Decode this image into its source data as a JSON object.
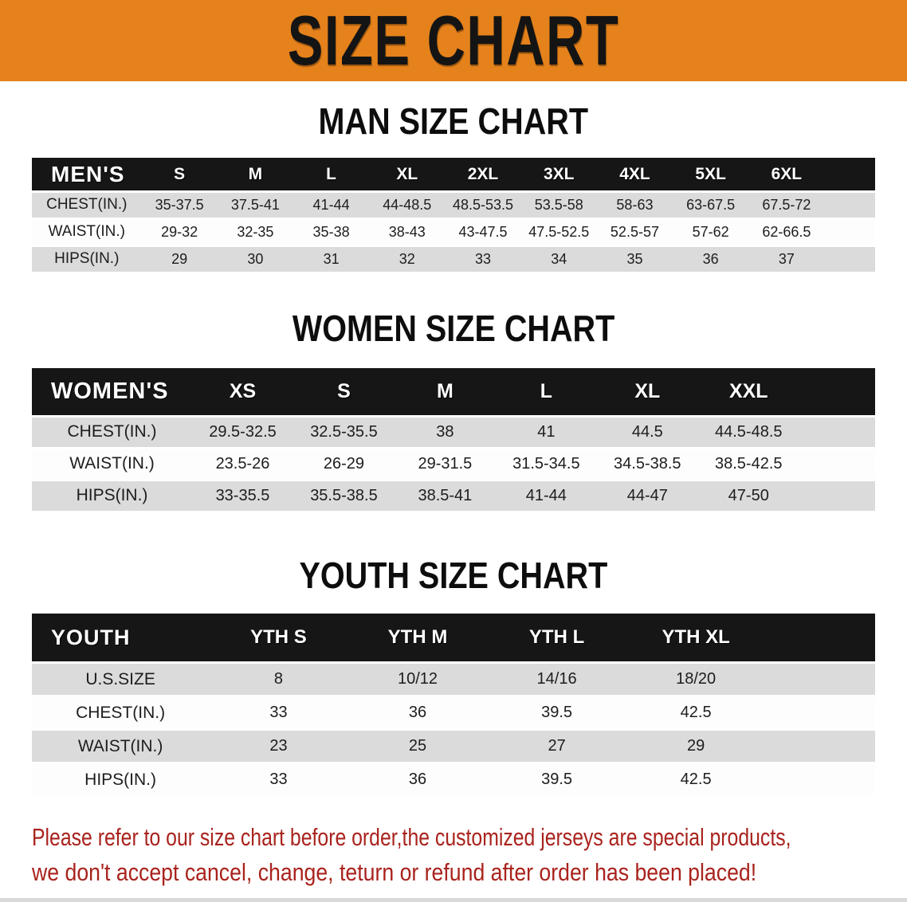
{
  "banner": {
    "title": "SIZE CHART",
    "bg_color": "#E5821C"
  },
  "sections": [
    {
      "id": "men",
      "heading": "MAN SIZE CHART",
      "corner_label": "MEN'S",
      "columns": [
        "S",
        "M",
        "L",
        "XL",
        "2XL",
        "3XL",
        "4XL",
        "5XL",
        "6XL"
      ],
      "rows": [
        {
          "label": "CHEST(IN.)",
          "values": [
            "35-37.5",
            "37.5-41",
            "41-44",
            "44-48.5",
            "48.5-53.5",
            "53.5-58",
            "58-63",
            "63-67.5",
            "67.5-72"
          ]
        },
        {
          "label": "WAIST(IN.)",
          "values": [
            "29-32",
            "32-35",
            "35-38",
            "38-43",
            "43-47.5",
            "47.5-52.5",
            "52.5-57",
            "57-62",
            "62-66.5"
          ]
        },
        {
          "label": "HIPS(IN.)",
          "values": [
            "29",
            "30",
            "31",
            "32",
            "33",
            "34",
            "35",
            "36",
            "37"
          ]
        }
      ]
    },
    {
      "id": "women",
      "heading": "WOMEN SIZE CHART",
      "corner_label": "WOMEN'S",
      "columns": [
        "XS",
        "S",
        "M",
        "L",
        "XL",
        "XXL"
      ],
      "rows": [
        {
          "label": "CHEST(IN.)",
          "values": [
            "29.5-32.5",
            "32.5-35.5",
            "38",
            "41",
            "44.5",
            "44.5-48.5"
          ]
        },
        {
          "label": "WAIST(IN.)",
          "values": [
            "23.5-26",
            "26-29",
            "29-31.5",
            "31.5-34.5",
            "34.5-38.5",
            "38.5-42.5"
          ]
        },
        {
          "label": "HIPS(IN.)",
          "values": [
            "33-35.5",
            "35.5-38.5",
            "38.5-41",
            "41-44",
            "44-47",
            "47-50"
          ]
        }
      ]
    },
    {
      "id": "youth",
      "heading": "YOUTH SIZE CHART",
      "corner_label": "YOUTH",
      "columns": [
        "YTH S",
        "YTH M",
        "YTH L",
        "YTH XL"
      ],
      "rows": [
        {
          "label": "U.S.SIZE",
          "values": [
            "8",
            "10/12",
            "14/16",
            "18/20"
          ]
        },
        {
          "label": "CHEST(IN.)",
          "values": [
            "33",
            "36",
            "39.5",
            "42.5"
          ]
        },
        {
          "label": "WAIST(IN.)",
          "values": [
            "23",
            "25",
            "27",
            "29"
          ]
        },
        {
          "label": "HIPS(IN.)",
          "values": [
            "33",
            "36",
            "39.5",
            "42.5"
          ]
        }
      ]
    }
  ],
  "footer": {
    "line1": "Please refer to our size chart before order,the customized jerseys are special products,",
    "line2": "we don't accept cancel, change, teturn or refund after order has been placed!",
    "text_color": "#A9231D"
  }
}
